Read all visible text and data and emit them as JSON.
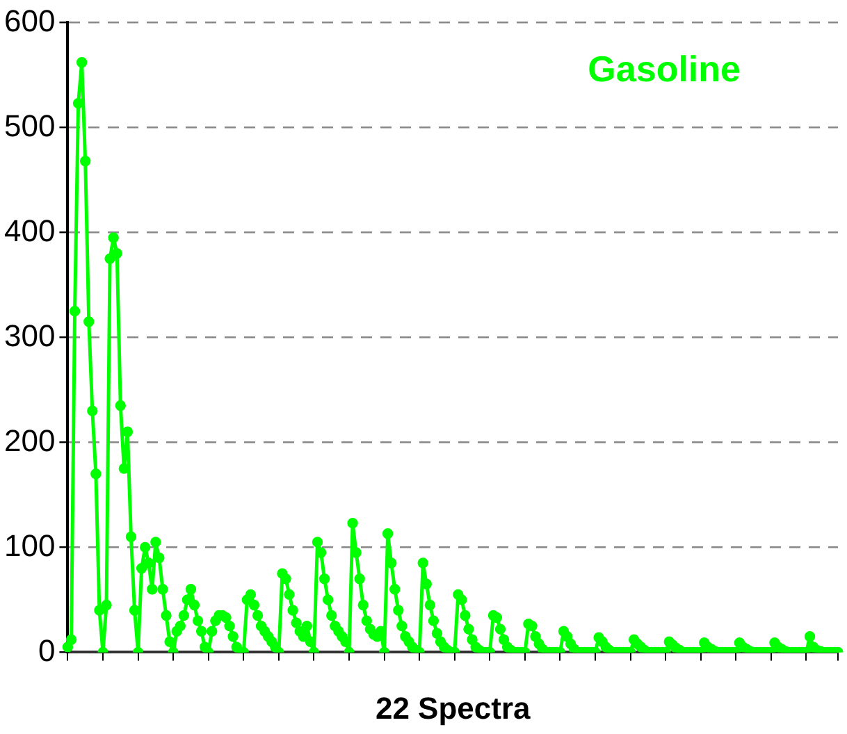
{
  "chart_data": {
    "type": "line",
    "xlabel": "22 Spectra",
    "annotations": [
      "Gasoline"
    ],
    "categories": [
      null,
      null,
      null,
      null,
      null,
      null,
      null,
      null,
      null,
      null,
      null,
      null,
      null,
      null,
      null,
      null,
      null,
      null,
      null,
      null,
      null,
      null,
      null,
      null,
      null,
      null,
      null,
      null,
      null,
      null,
      null,
      null,
      null,
      null,
      null,
      null,
      null,
      null,
      null,
      null,
      null,
      null,
      null,
      null,
      null,
      null,
      null,
      null,
      null,
      null,
      null,
      null,
      null,
      null,
      null,
      null,
      null,
      null,
      null,
      null,
      null,
      null,
      null,
      null,
      null,
      null,
      null,
      null,
      null,
      null,
      null,
      null,
      null,
      null,
      null,
      null,
      null,
      null,
      null,
      null,
      null,
      null,
      null,
      null,
      null,
      null,
      null,
      null,
      null,
      null,
      null,
      null,
      null,
      null,
      null,
      null,
      null,
      null,
      null,
      null,
      null,
      null,
      null,
      null,
      null,
      null,
      null,
      null,
      null,
      null,
      null,
      null,
      null,
      null,
      null,
      null,
      null,
      null,
      null,
      null,
      null,
      null,
      null,
      null,
      null,
      null,
      null,
      null,
      null,
      null,
      null,
      null,
      null,
      null,
      null,
      null,
      null,
      null,
      null,
      null,
      null,
      null,
      null,
      null,
      null,
      null,
      null,
      null,
      null,
      null,
      null,
      null,
      null,
      null,
      null,
      null,
      null,
      null,
      null,
      null,
      null,
      null,
      null,
      null,
      null,
      null,
      null,
      null,
      null,
      null,
      null,
      null,
      null,
      null,
      null,
      null,
      null,
      null,
      null,
      null,
      null,
      null,
      null,
      null,
      null,
      null,
      null,
      null,
      null,
      null,
      null,
      null,
      null,
      null,
      null,
      null,
      null,
      null,
      null,
      null,
      null,
      null,
      null,
      null,
      null,
      null,
      null,
      null,
      null,
      null,
      null,
      null,
      null,
      null,
      null,
      null,
      null,
      null,
      null,
      null
    ],
    "series": [
      {
        "color": "#00ff00",
        "values": [
          5,
          12,
          325,
          523,
          562,
          468,
          315,
          230,
          170,
          40,
          0,
          45,
          375,
          395,
          380,
          235,
          175,
          210,
          110,
          40,
          0,
          80,
          100,
          85,
          60,
          105,
          90,
          60,
          35,
          10,
          0,
          20,
          25,
          35,
          50,
          60,
          45,
          30,
          20,
          5,
          0,
          20,
          30,
          35,
          35,
          33,
          25,
          15,
          5,
          0,
          0,
          50,
          55,
          45,
          35,
          25,
          20,
          15,
          10,
          5,
          0,
          75,
          70,
          55,
          40,
          28,
          20,
          15,
          25,
          10,
          0,
          105,
          95,
          70,
          50,
          35,
          25,
          20,
          15,
          10,
          0,
          123,
          95,
          70,
          45,
          30,
          22,
          17,
          15,
          20,
          0,
          113,
          85,
          60,
          40,
          25,
          15,
          10,
          5,
          2,
          0,
          85,
          65,
          45,
          30,
          18,
          10,
          5,
          2,
          0,
          0,
          55,
          50,
          35,
          22,
          12,
          5,
          2,
          0,
          0,
          0,
          35,
          33,
          22,
          12,
          5,
          2,
          0,
          0,
          0,
          0,
          27,
          25,
          15,
          8,
          3,
          0,
          0,
          0,
          0,
          0,
          20,
          15,
          8,
          3,
          0,
          0,
          0,
          0,
          0,
          0,
          14,
          10,
          5,
          2,
          0,
          0,
          0,
          0,
          0,
          0,
          12,
          8,
          5,
          2,
          0,
          0,
          0,
          0,
          0,
          0,
          10,
          7,
          4,
          2,
          0,
          0,
          0,
          0,
          0,
          0,
          9,
          5,
          3,
          1,
          0,
          0,
          0,
          0,
          0,
          0,
          9,
          5,
          3,
          1,
          0,
          0,
          0,
          0,
          0,
          0,
          9,
          5,
          3,
          1,
          0,
          0,
          0,
          0,
          0,
          0,
          15,
          5,
          2,
          1,
          0,
          0,
          0,
          0,
          0
        ]
      }
    ],
    "ylim": [
      0,
      600
    ],
    "yticks": [
      0,
      100,
      200,
      300,
      400,
      500,
      600
    ],
    "grid": "y",
    "marker": "circle",
    "line_style": "solid",
    "legend": false
  }
}
